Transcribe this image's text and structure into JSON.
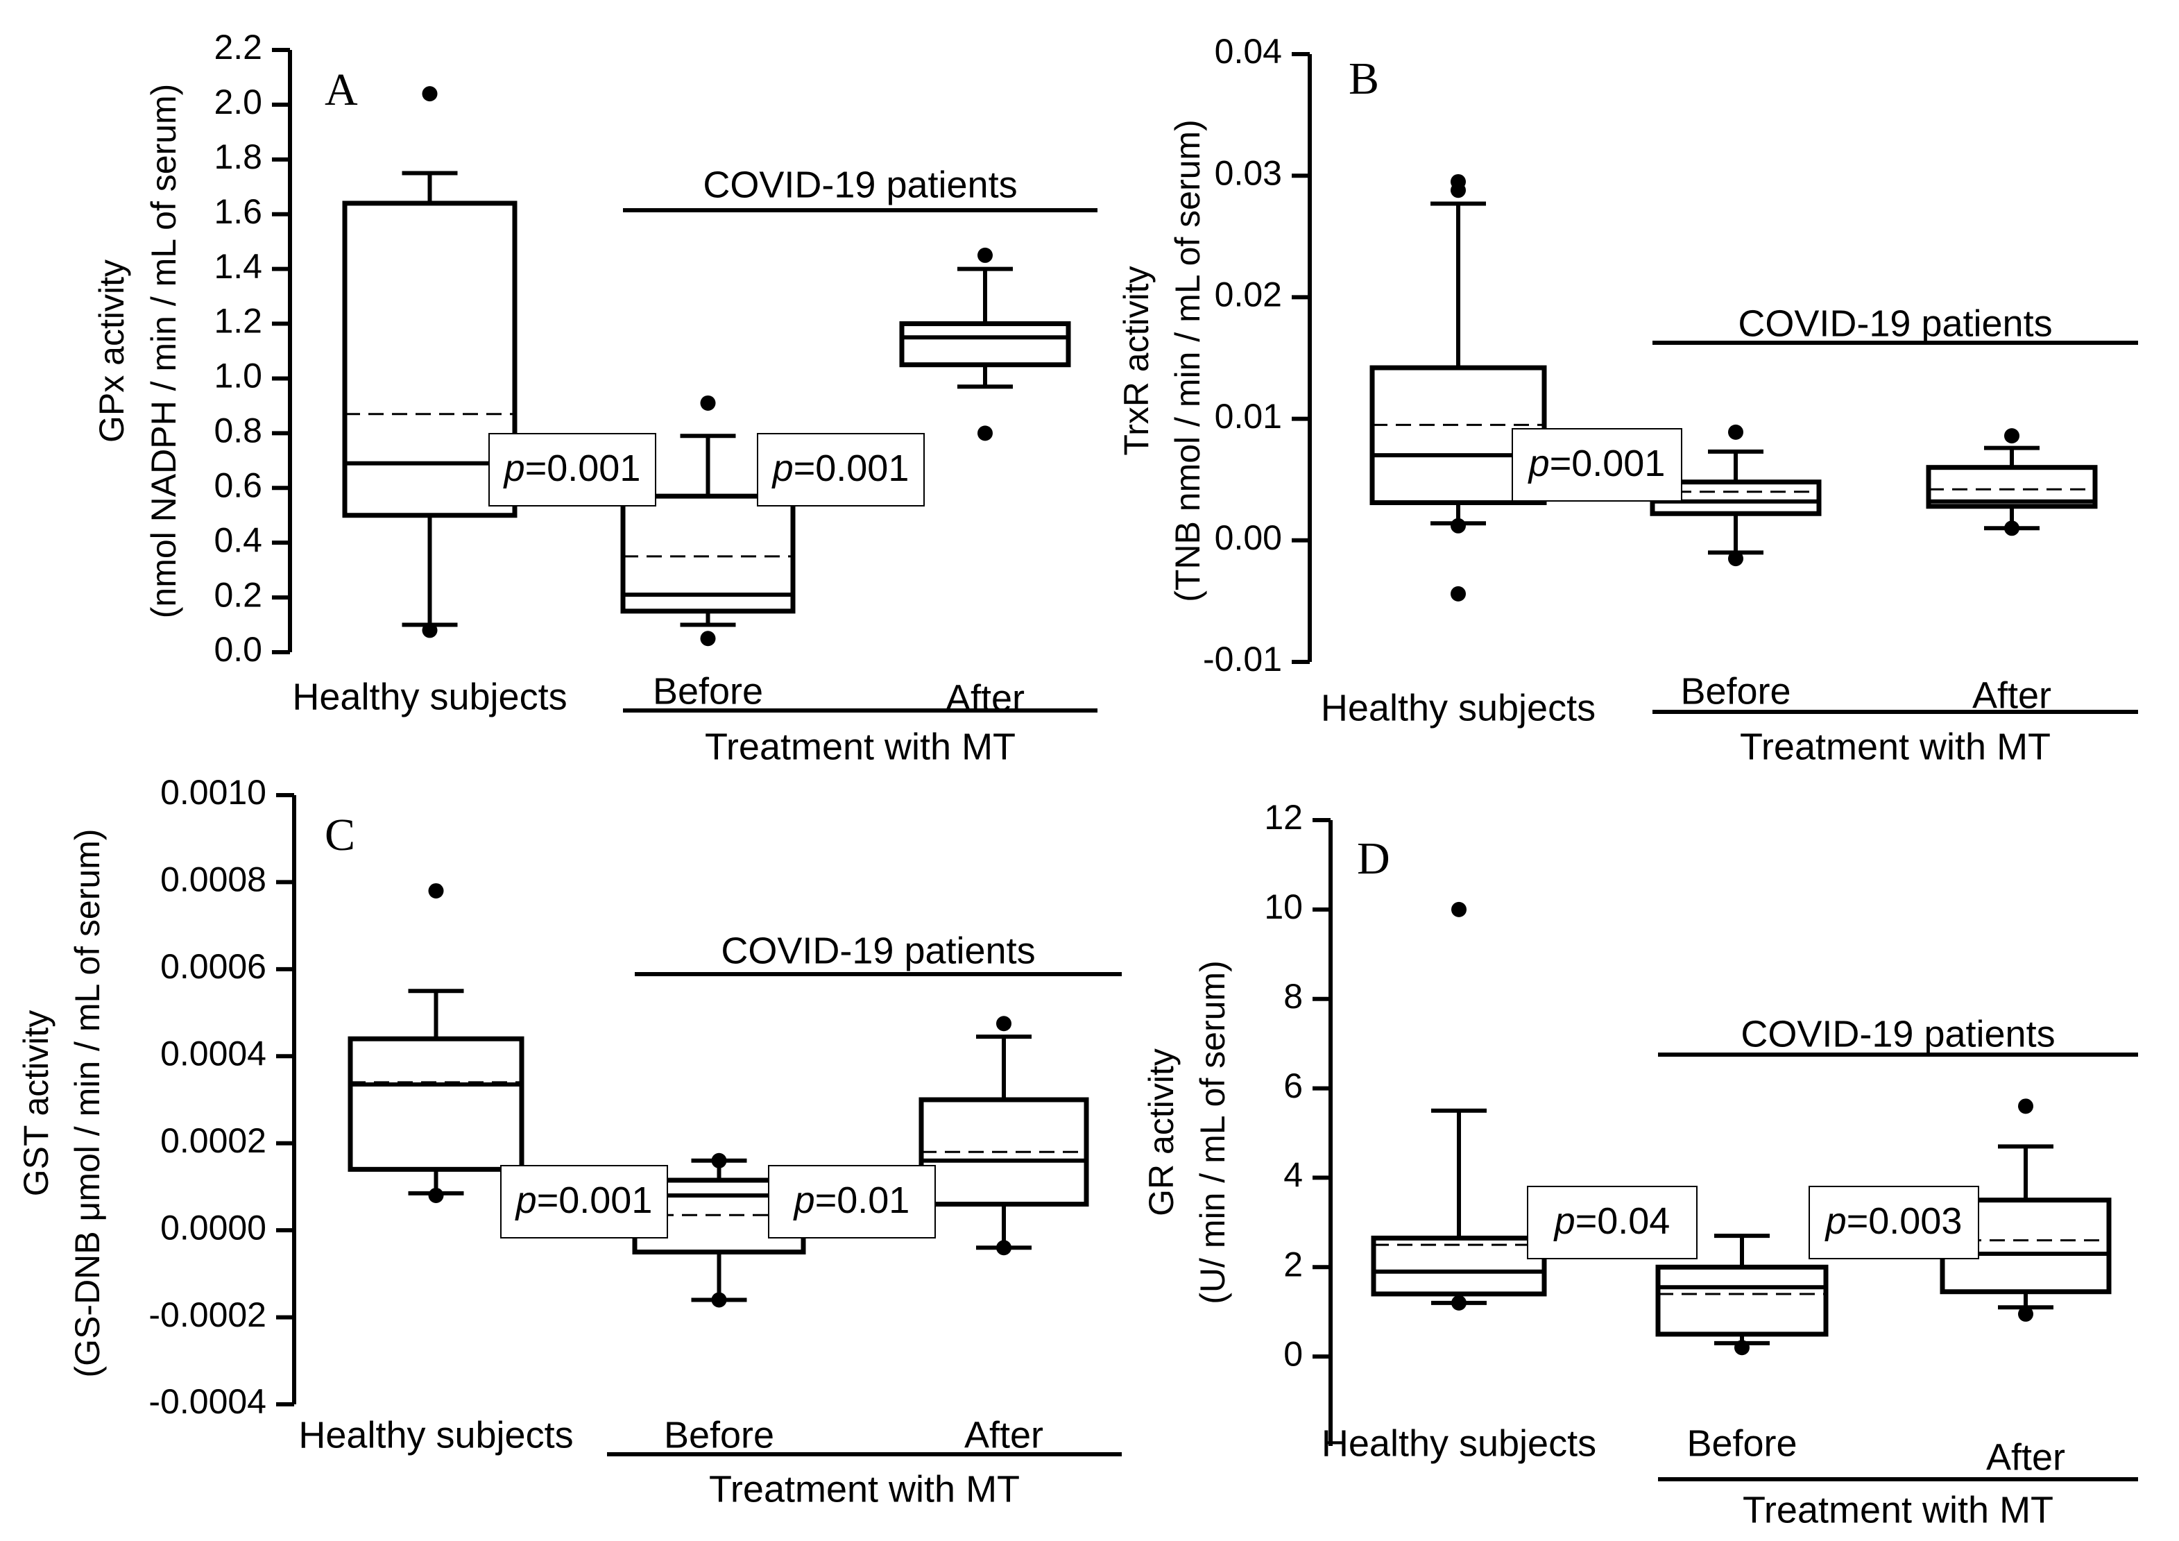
{
  "chart_data": [
    {
      "type": "box",
      "panel_label": "A",
      "ylabel_line1": "GPx activity",
      "ylabel_line2": "(nmol NADPH / min / mL of serum)",
      "ylim": [
        0,
        2.2
      ],
      "yticks": [
        0.0,
        0.2,
        0.4,
        0.6,
        0.8,
        1.0,
        1.2,
        1.4,
        1.6,
        1.8,
        2.0,
        2.2
      ],
      "tick_decimals": 1,
      "categories": [
        "Healthy subjects",
        "Before",
        "After"
      ],
      "covid_label": "COVID-19 patients",
      "treatment_label": "Treatment with MT",
      "boxes": [
        {
          "q1": 0.5,
          "median": 0.69,
          "mean": 0.87,
          "q3": 1.64,
          "whisker_low": 0.1,
          "whisker_high": 1.75,
          "outliers": [
            2.04,
            0.08
          ]
        },
        {
          "q1": 0.15,
          "median": 0.21,
          "mean": 0.35,
          "q3": 0.57,
          "whisker_low": 0.1,
          "whisker_high": 0.79,
          "outliers": [
            0.91,
            0.05
          ]
        },
        {
          "q1": 1.05,
          "median": 1.15,
          "mean": 1.15,
          "q3": 1.2,
          "whisker_low": 0.97,
          "whisker_high": 1.4,
          "outliers": [
            1.45,
            0.8
          ]
        }
      ],
      "p_values": [
        {
          "label": "p",
          "value": "=0.001"
        },
        {
          "label": "p",
          "value": "=0.001"
        }
      ]
    },
    {
      "type": "box",
      "panel_label": "B",
      "ylabel_line1": "TrxR activity",
      "ylabel_line2": "(TNB nmol / min / mL of serum)",
      "ylim": [
        -0.01,
        0.04
      ],
      "yticks": [
        -0.01,
        0.0,
        0.01,
        0.02,
        0.03,
        0.04
      ],
      "tick_decimals": 2,
      "categories": [
        "Healthy subjects",
        "Before",
        "After"
      ],
      "covid_label": "COVID-19 patients",
      "treatment_label": "Treatment with MT",
      "boxes": [
        {
          "q1": 0.0031,
          "median": 0.007,
          "mean": 0.0095,
          "q3": 0.0142,
          "whisker_low": 0.0014,
          "whisker_high": 0.0277,
          "outliers": [
            0.0295,
            0.0288,
            0.0012,
            -0.0044
          ]
        },
        {
          "q1": 0.0022,
          "median": 0.0032,
          "mean": 0.004,
          "q3": 0.0048,
          "whisker_low": -0.001,
          "whisker_high": 0.0073,
          "outliers": [
            0.0089,
            -0.0015
          ]
        },
        {
          "q1": 0.0028,
          "median": 0.0032,
          "mean": 0.0042,
          "q3": 0.006,
          "whisker_low": 0.001,
          "whisker_high": 0.0076,
          "outliers": [
            0.0086,
            0.001
          ]
        }
      ],
      "p_values": [
        {
          "label": "p",
          "value": "=0.001"
        }
      ]
    },
    {
      "type": "box",
      "panel_label": "C",
      "ylabel_line1": "GST activity",
      "ylabel_line2": "(GS-DNB μmol / min / mL of serum)",
      "ylim": [
        -0.0004,
        0.001
      ],
      "yticks": [
        -0.0004,
        -0.0002,
        0.0,
        0.0002,
        0.0004,
        0.0006,
        0.0008,
        0.001
      ],
      "tick_decimals": 4,
      "categories": [
        "Healthy subjects",
        "Before",
        "After"
      ],
      "covid_label": "COVID-19 patients",
      "treatment_label": "Treatment with MT",
      "boxes": [
        {
          "q1": 0.00014,
          "median": 0.000335,
          "mean": 0.00034,
          "q3": 0.00044,
          "whisker_low": 8.5e-05,
          "whisker_high": 0.00055,
          "outliers": [
            0.00078,
            8e-05
          ]
        },
        {
          "q1": -5e-05,
          "median": 8e-05,
          "mean": 3.5e-05,
          "q3": 0.000115,
          "whisker_low": -0.00016,
          "whisker_high": 0.00016,
          "outliers": [
            0.00016,
            -0.00016
          ]
        },
        {
          "q1": 6e-05,
          "median": 0.00016,
          "mean": 0.00018,
          "q3": 0.0003,
          "whisker_low": -4e-05,
          "whisker_high": 0.000445,
          "outliers": [
            0.000475,
            -4e-05
          ]
        }
      ],
      "p_values": [
        {
          "label": "p",
          "value": "=0.001"
        },
        {
          "label": "p",
          "value": "=0.01"
        }
      ]
    },
    {
      "type": "box",
      "panel_label": "D",
      "ylabel_line1": "GR activity",
      "ylabel_line2": "(U/ min / mL of serum)",
      "ylim": [
        -2,
        12
      ],
      "yticks": [
        0,
        2,
        4,
        6,
        8,
        10,
        12
      ],
      "tick_decimals": 0,
      "categories": [
        "Healthy subjects",
        "Before",
        "After"
      ],
      "covid_label": "COVID-19 patients",
      "treatment_label": "Treatment with MT",
      "boxes": [
        {
          "q1": 1.4,
          "median": 1.9,
          "mean": 2.5,
          "q3": 2.65,
          "whisker_low": 1.2,
          "whisker_high": 5.5,
          "outliers": [
            10.0,
            1.2
          ]
        },
        {
          "q1": 0.5,
          "median": 1.55,
          "mean": 1.4,
          "q3": 2.0,
          "whisker_low": 0.3,
          "whisker_high": 2.7,
          "outliers": [
            0.2
          ]
        },
        {
          "q1": 1.45,
          "median": 2.3,
          "mean": 2.6,
          "q3": 3.5,
          "whisker_low": 1.1,
          "whisker_high": 4.7,
          "outliers": [
            5.6,
            0.95
          ]
        }
      ],
      "p_values": [
        {
          "label": "p",
          "value": "=0.04"
        },
        {
          "label": "p",
          "value": "=0.003"
        }
      ]
    }
  ]
}
